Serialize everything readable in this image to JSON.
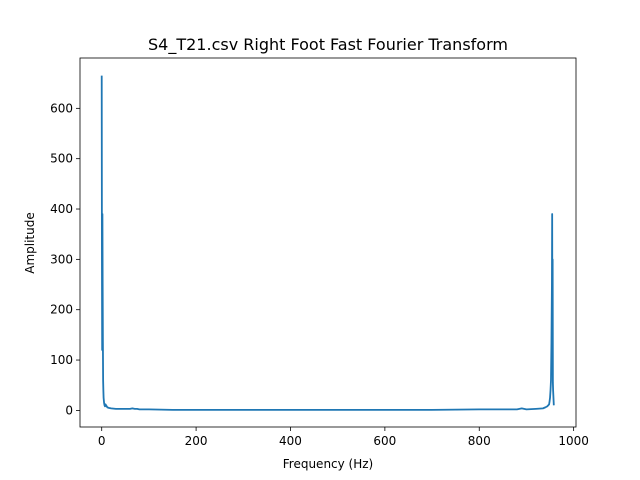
{
  "chart_data": {
    "type": "line",
    "title": "S4_T21.csv Right Foot Fast Fourier Transform",
    "xlabel": "Frequency (Hz)",
    "ylabel": "Amplitude",
    "xlim": [
      -46,
      1005
    ],
    "ylim": [
      -33,
      700
    ],
    "x_ticks": [
      0,
      200,
      400,
      600,
      800,
      1000
    ],
    "x_tick_labels": [
      "0",
      "200",
      "400",
      "600",
      "800",
      "1000"
    ],
    "y_ticks": [
      0,
      100,
      200,
      300,
      400,
      500,
      600
    ],
    "y_tick_labels": [
      "0",
      "100",
      "200",
      "300",
      "400",
      "500",
      "600"
    ],
    "grid": false,
    "legend": "none",
    "color": "#1f77b4",
    "series": [
      {
        "x": [
          0,
          0.5,
          1,
          1.5,
          2,
          2.5,
          3,
          3.5,
          4,
          5,
          6,
          7,
          8,
          10,
          12,
          15,
          20,
          30,
          40,
          50,
          60,
          65,
          70,
          75,
          80,
          100,
          150,
          200,
          300,
          400,
          500,
          600,
          700,
          800,
          880,
          885,
          890,
          895,
          900,
          920,
          935,
          940,
          944,
          946,
          948,
          949,
          950,
          951,
          952,
          953,
          954,
          954.5,
          955,
          955.5,
          956,
          956.5,
          957,
          957.5,
          958
        ],
        "y": [
          665,
          300,
          120,
          390,
          250,
          135,
          60,
          40,
          25,
          15,
          10,
          8,
          12,
          9,
          6,
          5,
          4,
          3,
          3,
          3,
          3,
          4,
          3,
          3,
          2,
          2,
          1,
          1,
          1,
          1,
          1,
          1,
          1,
          2,
          2,
          3,
          4,
          3,
          2,
          3,
          4,
          6,
          8,
          10,
          12,
          18,
          25,
          40,
          60,
          135,
          250,
          390,
          120,
          300,
          55,
          40,
          30,
          20,
          10
        ]
      }
    ]
  }
}
